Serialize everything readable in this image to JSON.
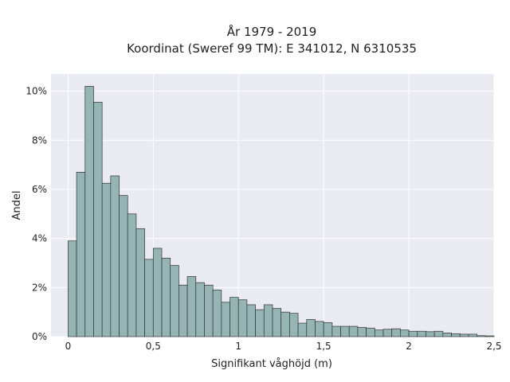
{
  "chart_data": {
    "type": "bar",
    "title_line1": "År 1979 - 2019",
    "title_line2": "Koordinat (Sweref 99 TM): E 341012, N 6310535",
    "xlabel": "Signifikant våghöjd (m)",
    "ylabel": "Andel",
    "xlim": [
      -0.1,
      2.5
    ],
    "ylim": [
      0,
      10.7
    ],
    "x_ticks": [
      {
        "value": 0,
        "label": "0"
      },
      {
        "value": 0.5,
        "label": "0,5"
      },
      {
        "value": 1,
        "label": "1"
      },
      {
        "value": 1.5,
        "label": "1,5"
      },
      {
        "value": 2,
        "label": "2"
      },
      {
        "value": 2.5,
        "label": "2,5"
      }
    ],
    "y_ticks": [
      {
        "value": 0,
        "label": "0%"
      },
      {
        "value": 2,
        "label": "2%"
      },
      {
        "value": 4,
        "label": "4%"
      },
      {
        "value": 6,
        "label": "6%"
      },
      {
        "value": 8,
        "label": "8%"
      },
      {
        "value": 10,
        "label": "10%"
      }
    ],
    "bin_start": 0,
    "bin_width": 0.05,
    "values": [
      3.9,
      6.7,
      10.2,
      9.55,
      6.25,
      6.55,
      5.75,
      5.0,
      4.4,
      3.15,
      3.6,
      3.2,
      2.9,
      2.1,
      2.45,
      2.2,
      2.1,
      1.9,
      1.4,
      1.6,
      1.5,
      1.3,
      1.1,
      1.3,
      1.15,
      1.0,
      0.95,
      0.55,
      0.7,
      0.62,
      0.57,
      0.42,
      0.42,
      0.42,
      0.38,
      0.35,
      0.27,
      0.3,
      0.32,
      0.27,
      0.22,
      0.22,
      0.2,
      0.22,
      0.15,
      0.12,
      0.1,
      0.1,
      0.04,
      0.03
    ],
    "grid": true,
    "colors": {
      "background": "#eaeaf2",
      "grid": "#ffffff",
      "bar_fill": "#95b4b4",
      "bar_edge": "#333333",
      "text": "#222222"
    }
  }
}
